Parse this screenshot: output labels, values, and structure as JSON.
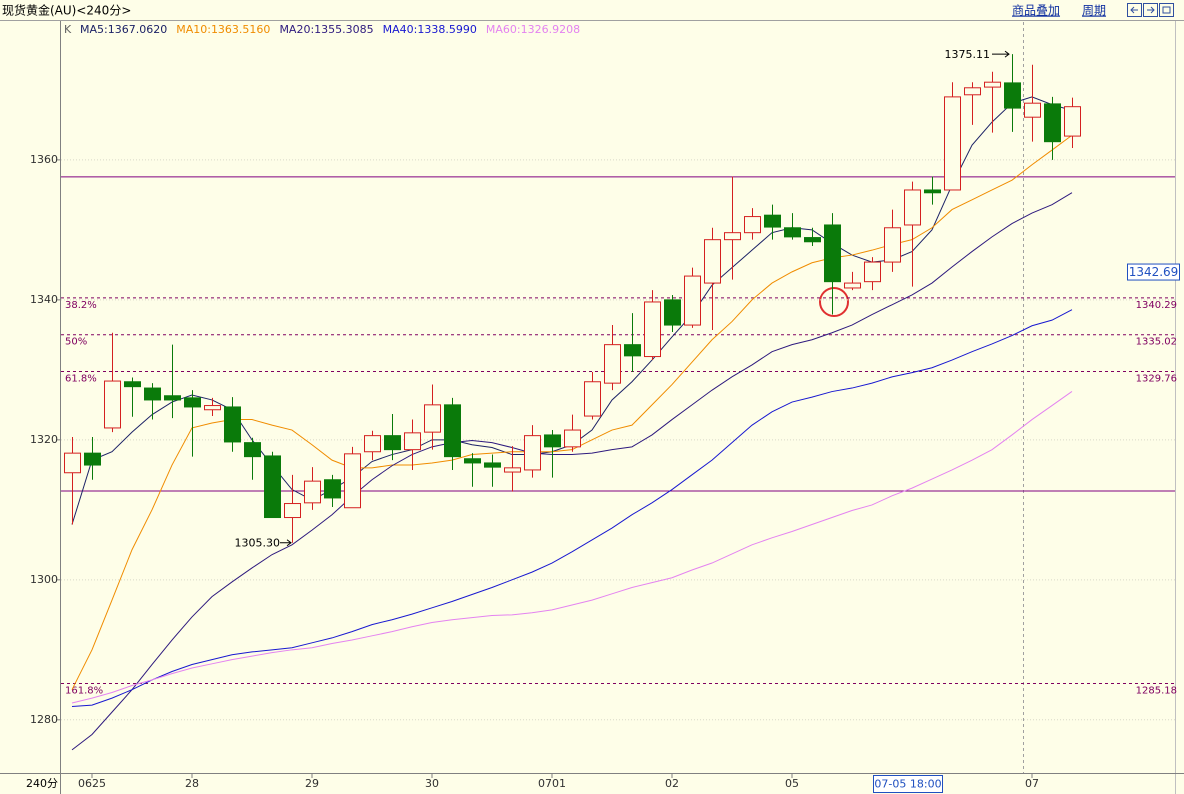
{
  "header": {
    "title": "现货黄金(AU)<240分>",
    "links": [
      "商品叠加",
      "周期"
    ]
  },
  "chart_data": {
    "type": "candlestick",
    "candle_label": "K",
    "period": "240分",
    "categories": [
      null,
      "0625",
      null,
      null,
      null,
      null,
      "28",
      null,
      null,
      null,
      null,
      null,
      "29",
      null,
      null,
      null,
      null,
      null,
      "30",
      null,
      null,
      null,
      null,
      null,
      "0701",
      null,
      null,
      null,
      null,
      null,
      "02",
      null,
      null,
      null,
      null,
      null,
      "05",
      null,
      null,
      null,
      null,
      null,
      null,
      null,
      null,
      null,
      null,
      null,
      "07",
      null,
      null
    ],
    "open": [
      1315.3,
      1318.1,
      1321.7,
      1328.3,
      1327.4,
      1326.3,
      1326.0,
      1324.3,
      1324.7,
      1319.6,
      1317.7,
      1308.9,
      1311.0,
      1314.3,
      1310.3,
      1318.3,
      1320.6,
      1318.6,
      1321.1,
      1325.0,
      1317.3,
      1316.7,
      1315.4,
      1315.7,
      1320.7,
      1319.0,
      1323.4,
      1328.1,
      1333.6,
      1331.9,
      1340.0,
      1336.4,
      1342.4,
      1348.6,
      1349.6,
      1352.1,
      1350.3,
      1348.9,
      1350.7,
      1341.7,
      1342.6,
      1345.4,
      1350.7,
      1355.7,
      1355.7,
      1369.3,
      1370.4,
      1371.0,
      1366.1,
      1368.0,
      1363.4
    ],
    "high": [
      1320.4,
      1320.4,
      1335.3,
      1328.9,
      1328.1,
      1333.6,
      1327.1,
      1326.0,
      1326.1,
      1320.3,
      1318.3,
      1315.0,
      1316.1,
      1315.0,
      1319.0,
      1321.3,
      1323.7,
      1322.9,
      1327.9,
      1326.0,
      1318.1,
      1317.9,
      1319.1,
      1322.1,
      1321.4,
      1323.6,
      1329.7,
      1336.4,
      1338.1,
      1341.4,
      1340.7,
      1344.6,
      1350.3,
      1357.6,
      1353.1,
      1353.6,
      1352.4,
      1350.3,
      1352.4,
      1344.0,
      1346.1,
      1352.9,
      1356.9,
      1357.6,
      1371.1,
      1371.1,
      1372.6,
      1375.11,
      1373.6,
      1369.0,
      1368.9
    ],
    "low": [
      1307.9,
      1314.3,
      1321.1,
      1323.3,
      1322.9,
      1323.1,
      1317.6,
      1323.4,
      1318.3,
      1314.3,
      1308.9,
      1305.3,
      1310.0,
      1310.4,
      1310.3,
      1317.1,
      1317.1,
      1315.7,
      1318.6,
      1315.7,
      1313.3,
      1313.3,
      1312.6,
      1314.6,
      1314.6,
      1318.3,
      1322.9,
      1327.1,
      1329.7,
      1331.4,
      1335.4,
      1336.0,
      1335.7,
      1342.9,
      1348.6,
      1348.6,
      1348.6,
      1347.7,
      1337.9,
      1341.4,
      1341.4,
      1344.0,
      1341.9,
      1353.6,
      1355.7,
      1365.0,
      1363.9,
      1364.0,
      1362.6,
      1360.0,
      1361.7
    ],
    "close": [
      1318.1,
      1316.4,
      1328.4,
      1327.6,
      1325.7,
      1325.7,
      1324.7,
      1324.9,
      1319.7,
      1317.6,
      1308.9,
      1310.9,
      1314.1,
      1311.7,
      1318.0,
      1320.6,
      1318.6,
      1321.0,
      1325.0,
      1317.6,
      1316.7,
      1316.1,
      1316.0,
      1320.6,
      1319.0,
      1321.4,
      1328.3,
      1333.6,
      1332.0,
      1339.7,
      1336.4,
      1343.4,
      1348.6,
      1349.6,
      1351.9,
      1350.4,
      1349.0,
      1348.3,
      1342.6,
      1342.4,
      1345.4,
      1350.3,
      1355.7,
      1355.3,
      1369.0,
      1370.3,
      1371.1,
      1367.4,
      1368.1,
      1362.6,
      1367.6
    ],
    "low_label": "1305.30",
    "up_color": "#d42020",
    "down_color": "#0a7a0a",
    "series": [
      {
        "name": "MA5:1367.0620",
        "color": "#1c2266",
        "values": [
          1307.9,
          1317.1,
          1318.3,
          1321.1,
          1323.6,
          1325.4,
          1326.4,
          1325.7,
          1324.3,
          1320.0,
          1316.4,
          1312.9,
          1311.4,
          1312.9,
          1314.6,
          1316.9,
          1317.9,
          1318.6,
          1320.0,
          1320.0,
          1319.3,
          1318.9,
          1317.9,
          1317.9,
          1318.3,
          1319.3,
          1321.4,
          1325.7,
          1328.3,
          1331.4,
          1334.7,
          1337.9,
          1342.1,
          1344.6,
          1347.1,
          1349.6,
          1350.3,
          1350.0,
          1348.1,
          1346.4,
          1345.4,
          1345.7,
          1346.9,
          1350.0,
          1356.4,
          1362.1,
          1365.4,
          1368.1,
          1369.0,
          1367.9,
          1367.062
        ]
      },
      {
        "name": "MA10:1363.5160",
        "color": "#f08c00",
        "values": [
          1284.3,
          1290.0,
          1297.1,
          1304.3,
          1310.0,
          1316.4,
          1321.7,
          1322.4,
          1322.9,
          1322.9,
          1322.1,
          1321.4,
          1319.3,
          1317.1,
          1316.0,
          1316.0,
          1316.4,
          1316.4,
          1316.7,
          1317.1,
          1317.9,
          1318.1,
          1318.3,
          1318.3,
          1318.3,
          1318.6,
          1320.0,
          1321.4,
          1322.1,
          1325.0,
          1327.9,
          1331.1,
          1334.3,
          1336.9,
          1340.0,
          1342.4,
          1344.0,
          1345.3,
          1346.0,
          1346.4,
          1347.1,
          1347.9,
          1348.6,
          1350.3,
          1352.9,
          1354.3,
          1355.7,
          1357.1,
          1359.3,
          1361.4,
          1363.516
        ]
      },
      {
        "name": "MA20:1355.3085",
        "color": "#2e1a7e",
        "values": [
          1275.7,
          1277.9,
          1281.1,
          1284.3,
          1287.9,
          1291.4,
          1294.7,
          1297.6,
          1299.7,
          1301.7,
          1303.6,
          1305.0,
          1307.1,
          1309.3,
          1311.9,
          1314.3,
          1316.3,
          1317.9,
          1319.0,
          1319.6,
          1319.9,
          1319.6,
          1318.9,
          1318.1,
          1317.9,
          1317.9,
          1318.1,
          1318.6,
          1319.0,
          1320.7,
          1322.9,
          1325.0,
          1327.1,
          1329.0,
          1330.7,
          1332.6,
          1333.6,
          1334.3,
          1335.3,
          1336.4,
          1337.9,
          1339.3,
          1340.7,
          1342.4,
          1344.7,
          1346.9,
          1349.0,
          1350.9,
          1352.4,
          1353.6,
          1355.3085
        ]
      },
      {
        "name": "MA40:1338.5990",
        "color": "#1818d0",
        "values": [
          1281.9,
          1282.1,
          1283.1,
          1284.3,
          1285.7,
          1286.9,
          1287.9,
          1288.6,
          1289.3,
          1289.7,
          1290.0,
          1290.3,
          1291.0,
          1291.7,
          1292.6,
          1293.6,
          1294.3,
          1295.1,
          1296.0,
          1296.9,
          1297.9,
          1298.9,
          1300.0,
          1301.1,
          1302.4,
          1304.0,
          1305.7,
          1307.4,
          1309.3,
          1311.0,
          1312.9,
          1315.0,
          1317.1,
          1319.6,
          1322.1,
          1324.0,
          1325.4,
          1326.1,
          1326.9,
          1327.4,
          1328.1,
          1329.0,
          1329.6,
          1330.3,
          1331.4,
          1332.6,
          1333.7,
          1334.9,
          1336.3,
          1337.1,
          1338.599
        ]
      },
      {
        "name": "MA60:1326.9208",
        "color": "#e483f0",
        "values": [
          1282.4,
          1283.1,
          1283.9,
          1284.9,
          1285.7,
          1286.6,
          1287.4,
          1288.0,
          1288.6,
          1289.1,
          1289.6,
          1290.0,
          1290.3,
          1290.9,
          1291.4,
          1292.0,
          1292.6,
          1293.3,
          1293.9,
          1294.3,
          1294.6,
          1294.9,
          1295.0,
          1295.3,
          1295.7,
          1296.4,
          1297.1,
          1298.0,
          1298.9,
          1299.6,
          1300.3,
          1301.4,
          1302.4,
          1303.7,
          1305.0,
          1306.0,
          1306.9,
          1307.9,
          1308.9,
          1309.9,
          1310.7,
          1312.0,
          1313.1,
          1314.4,
          1315.7,
          1317.1,
          1318.6,
          1320.7,
          1322.9,
          1324.9,
          1326.9208
        ]
      }
    ],
    "hlines": [
      1357.57,
      1312.7
    ],
    "hline_color": "#800080",
    "fib_levels": [
      {
        "name": "38.2%",
        "value": 1340.29
      },
      {
        "name": "50%",
        "value": 1335.02
      },
      {
        "name": "61.8%",
        "value": 1329.76
      },
      {
        "name": "161.8%",
        "value": 1285.18
      }
    ],
    "fib_color": "#800060",
    "cursor": {
      "price": 1342.69,
      "time": "07-05 18:00"
    },
    "ylim": [
      1272.4,
      1379.7
    ],
    "yticks": [
      1280,
      1300,
      1320,
      1340,
      1360
    ],
    "grid": true
  }
}
